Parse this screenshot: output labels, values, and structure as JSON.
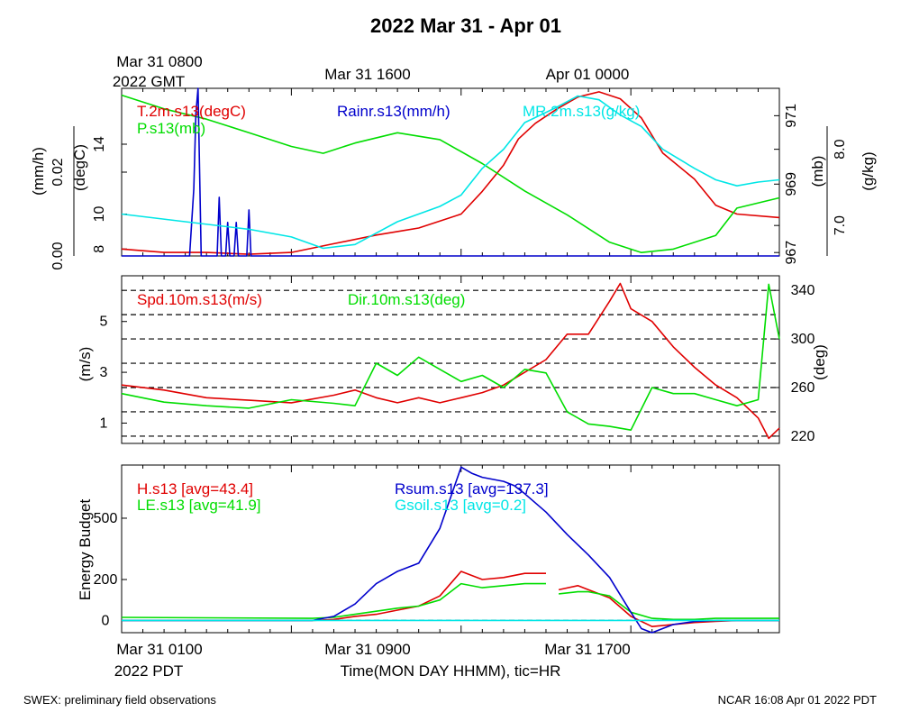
{
  "title": "2022 Mar 31 - Apr 01",
  "gmt_label_line1": "Mar 31 0800",
  "gmt_label_line2": "2022 GMT",
  "gmt_top_ticks": [
    "Mar 31 1600",
    "Apr 01 0000"
  ],
  "pdt_bottom_ticks": [
    "Mar 31 0100",
    "Mar 31 0900",
    "Mar 31 1700"
  ],
  "pdt_label": "2022 PDT",
  "xlabel": "Time(MON DAY HHMM), tic=HR",
  "footer_left": "SWEX: preliminary field observations",
  "footer_right": "NCAR 16:08 Apr 01 2022 PDT",
  "colors": {
    "red": "#e00000",
    "green": "#00dd00",
    "blue": "#0000cc",
    "cyan": "#00e6e6",
    "black": "#000000"
  },
  "chart_data": [
    {
      "type": "line",
      "panel": "top",
      "x_unit": "hours since Mar 31 0100 PDT",
      "xlim": [
        0,
        31
      ],
      "y_axes": {
        "rain": {
          "label": "(mm/h)",
          "lim": [
            0,
            0.04
          ],
          "ticks": [
            "0.00",
            "0.02"
          ]
        },
        "temp": {
          "label": "(degC)",
          "lim": [
            7.6,
            17.2
          ],
          "ticks": [
            "8",
            "10",
            "14"
          ]
        },
        "pres": {
          "label": "(mb)",
          "lim": [
            966.9,
            971.8
          ],
          "ticks": [
            "967",
            "969",
            "971"
          ]
        },
        "mr": {
          "label": "(g/kg)",
          "lim": [
            6.6,
            8.8
          ],
          "ticks": [
            "7.0",
            "8.0"
          ]
        }
      },
      "series": [
        {
          "name": "T.2m.s13(degC)",
          "axis": "temp",
          "color": "red",
          "x": [
            0,
            2,
            4,
            6,
            8,
            10,
            12,
            14,
            16,
            17,
            18,
            18.7,
            19.5,
            20.5,
            21.5,
            22.5,
            23.5,
            24.5,
            25.5,
            27,
            28,
            29,
            31
          ],
          "y": [
            8.0,
            7.8,
            7.8,
            7.7,
            7.8,
            8.3,
            8.8,
            9.2,
            10.0,
            11.3,
            12.8,
            14.3,
            15.2,
            16.0,
            16.7,
            17.0,
            16.6,
            15.5,
            13.5,
            12.0,
            10.5,
            10.0,
            9.8
          ]
        },
        {
          "name": "P.s13(mb)",
          "axis": "pres",
          "color": "green",
          "x": [
            0,
            2,
            4,
            6,
            8,
            9.5,
            11,
            13,
            15,
            17,
            19,
            21,
            23,
            24.5,
            26,
            28,
            29,
            31
          ],
          "y": [
            971.6,
            971.2,
            970.9,
            970.5,
            970.1,
            969.9,
            970.2,
            970.5,
            970.3,
            969.6,
            968.8,
            968.1,
            967.3,
            967.0,
            967.1,
            967.5,
            968.3,
            968.6
          ]
        },
        {
          "name": "Rainr.s13(mm/h)",
          "axis": "rain",
          "color": "blue",
          "x": [
            0,
            3.2,
            3.4,
            3.5,
            3.6,
            3.75,
            4,
            4.5,
            4.6,
            4.7,
            4.9,
            5.0,
            5.1,
            5.3,
            5.4,
            5.5,
            5.6,
            5.9,
            6.0,
            6.1,
            31
          ],
          "y": [
            0,
            0,
            0.016,
            0.034,
            0.04,
            0,
            0,
            0,
            0.014,
            0,
            0,
            0.008,
            0,
            0,
            0.008,
            0,
            0,
            0,
            0.011,
            0,
            0
          ]
        },
        {
          "name": "MR.2m.s13(g/kg)",
          "axis": "mr",
          "color": "cyan",
          "x": [
            0,
            3,
            6,
            8,
            9.5,
            11,
            13,
            15,
            16,
            17,
            18,
            19,
            20.5,
            21.5,
            22.5,
            23.5,
            24.5,
            25.5,
            27,
            28,
            29,
            30,
            31
          ],
          "y": [
            7.15,
            7.05,
            6.95,
            6.85,
            6.7,
            6.75,
            7.05,
            7.25,
            7.4,
            7.75,
            8.0,
            8.35,
            8.55,
            8.7,
            8.65,
            8.45,
            8.3,
            8.0,
            7.75,
            7.6,
            7.52,
            7.57,
            7.6
          ]
        }
      ]
    },
    {
      "type": "line",
      "panel": "middle",
      "x_unit": "hours since Mar 31 0100 PDT",
      "xlim": [
        0,
        31
      ],
      "y_axes": {
        "spd": {
          "label": "(m/s)",
          "lim": [
            0.2,
            6.8
          ],
          "ticks": [
            "1",
            "3",
            "5"
          ]
        },
        "dir": {
          "label": "(deg)",
          "lim": [
            214,
            352
          ],
          "ticks": [
            "220",
            "260",
            "300",
            "340"
          ]
        }
      },
      "grid_lines_deg": [
        220,
        240,
        260,
        280,
        300,
        320,
        340
      ],
      "series": [
        {
          "name": "Spd.10m.s13(m/s)",
          "axis": "spd",
          "color": "red",
          "x": [
            0,
            2,
            4,
            6,
            8,
            10,
            11,
            12,
            13,
            14,
            15,
            16,
            17,
            18,
            19,
            20,
            21,
            22,
            23,
            23.5,
            24,
            25,
            26,
            27,
            28,
            29,
            30,
            30.5,
            31
          ],
          "y": [
            2.5,
            2.3,
            2.0,
            1.9,
            1.8,
            2.1,
            2.3,
            2.0,
            1.8,
            2.0,
            1.8,
            2.0,
            2.2,
            2.5,
            3.0,
            3.5,
            4.5,
            4.5,
            5.8,
            6.5,
            5.5,
            5.0,
            4.0,
            3.2,
            2.5,
            2.0,
            1.2,
            0.4,
            0.8
          ]
        },
        {
          "name": "Dir.10m.s13(deg)",
          "axis": "dir",
          "color": "green",
          "x": [
            0,
            2,
            4,
            6,
            8,
            10,
            11,
            12,
            13,
            14,
            15,
            16,
            17,
            18,
            19,
            20,
            21,
            22,
            23,
            24,
            25,
            26,
            27,
            28,
            29,
            30,
            30.5,
            31
          ],
          "y": [
            255,
            248,
            245,
            243,
            250,
            247,
            245,
            280,
            270,
            285,
            275,
            265,
            270,
            260,
            275,
            272,
            240,
            230,
            228,
            225,
            260,
            255,
            255,
            250,
            245,
            250,
            345,
            300
          ]
        }
      ]
    },
    {
      "type": "line",
      "panel": "bottom",
      "x_unit": "hours since Mar 31 0100 PDT",
      "xlim": [
        0,
        31
      ],
      "y_axes": {
        "energy": {
          "label": "Energy Budget",
          "lim": [
            -60,
            760
          ],
          "ticks": [
            "0",
            "200",
            "500"
          ]
        }
      },
      "series": [
        {
          "name": "H.s13 [avg=43.4]",
          "axis": "energy",
          "color": "red",
          "x": [
            0,
            9,
            10,
            11,
            12,
            13,
            14,
            15,
            16,
            17,
            18,
            19,
            20,
            20.3,
            20.6,
            21.5,
            22,
            23,
            24,
            25,
            26,
            27,
            28,
            29,
            31
          ],
          "y": [
            0,
            0,
            5,
            20,
            30,
            50,
            70,
            120,
            240,
            200,
            210,
            230,
            230,
            null,
            150,
            170,
            150,
            110,
            20,
            -30,
            -20,
            -10,
            -5,
            0,
            0
          ]
        },
        {
          "name": "LE.s13 [avg=41.9]",
          "axis": "energy",
          "color": "green",
          "x": [
            0,
            9,
            10,
            11,
            12,
            13,
            14,
            15,
            16,
            17,
            18,
            19,
            20,
            20.3,
            20.6,
            21.5,
            22,
            23,
            24,
            25,
            26,
            27,
            28,
            29,
            31
          ],
          "y": [
            15,
            10,
            15,
            30,
            45,
            60,
            70,
            100,
            180,
            160,
            170,
            180,
            180,
            null,
            130,
            140,
            140,
            120,
            40,
            10,
            5,
            5,
            10,
            10,
            10
          ]
        },
        {
          "name": "Rsum.s13 [avg=137.3]",
          "axis": "energy",
          "color": "blue",
          "x": [
            0,
            8,
            9,
            10,
            11,
            12,
            13,
            14,
            15,
            16,
            16.5,
            17,
            18,
            18.5,
            19,
            20,
            21,
            22,
            23,
            24,
            24.5,
            25,
            26,
            27,
            28,
            31
          ],
          "y": [
            0,
            0,
            0,
            20,
            80,
            180,
            240,
            280,
            450,
            750,
            720,
            700,
            680,
            660,
            620,
            530,
            420,
            320,
            210,
            40,
            -40,
            -60,
            -20,
            -5,
            0,
            0
          ]
        },
        {
          "name": "Gsoil.s13 [avg=0.2]",
          "axis": "energy",
          "color": "cyan",
          "x": [
            0,
            31
          ],
          "y": [
            0,
            0
          ]
        }
      ]
    }
  ]
}
